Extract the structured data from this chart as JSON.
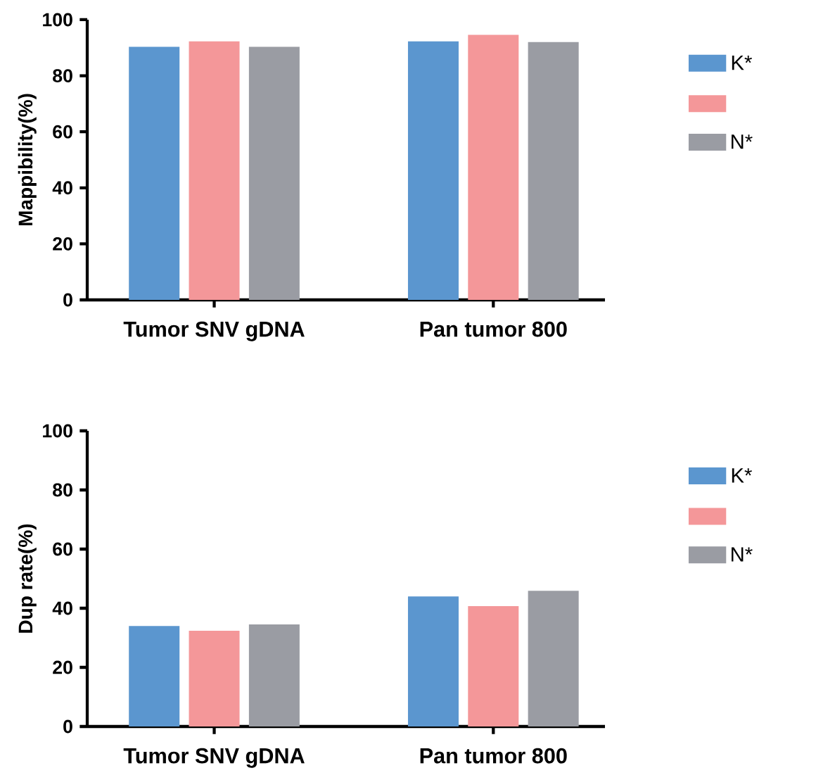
{
  "chart_data": [
    {
      "type": "bar",
      "ylabel": "Mappibility(%)",
      "categories": [
        "Tumor SNV gDNA",
        "Pan tumor 800"
      ],
      "ylim": [
        0,
        100
      ],
      "yticks": [
        0,
        20,
        40,
        60,
        80,
        100
      ],
      "legend": "right",
      "series": [
        {
          "name": "K*",
          "color": "#5b96cf",
          "values": [
            90.3,
            92.3
          ]
        },
        {
          "color": "#f49799",
          "values": [
            92.3,
            94.6
          ]
        },
        {
          "name": "N*",
          "color": "#9a9ca3",
          "values": [
            90.3,
            92.0
          ]
        }
      ]
    },
    {
      "type": "bar",
      "ylabel": "Dup rate(%)",
      "categories": [
        "Tumor SNV gDNA",
        "Pan tumor 800"
      ],
      "ylim": [
        0,
        100
      ],
      "yticks": [
        0,
        20,
        40,
        60,
        80,
        100
      ],
      "legend": "right",
      "series": [
        {
          "name": "K*",
          "color": "#5b96cf",
          "values": [
            34.0,
            44.0
          ]
        },
        {
          "color": "#f49799",
          "values": [
            32.4,
            40.7
          ]
        },
        {
          "name": "N*",
          "color": "#9a9ca3",
          "values": [
            34.5,
            45.9
          ]
        }
      ]
    }
  ]
}
